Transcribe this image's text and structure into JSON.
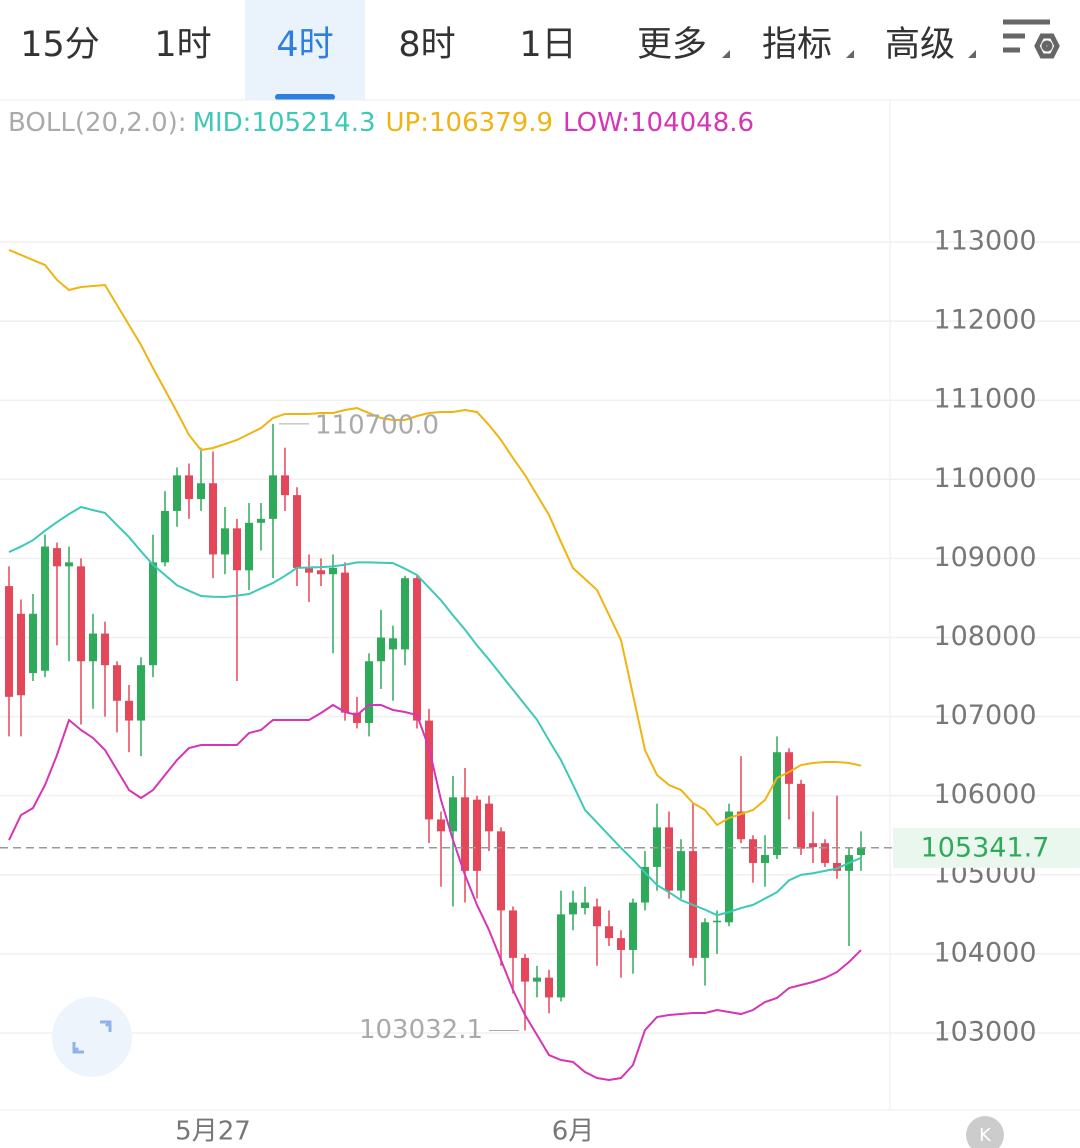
{
  "tabs": [
    "15分",
    "1时",
    "4时",
    "8时",
    "1日",
    "更多",
    "指标",
    "高级"
  ],
  "selected_tab": 2,
  "chart_data": {
    "type": "candlestick",
    "indicator": "BOLL(20,2.0):",
    "categories": [
      null,
      null,
      null,
      null,
      null,
      null,
      null,
      null,
      null,
      null,
      null,
      null,
      null,
      null,
      null,
      null,
      null,
      "5月27",
      null,
      null,
      null,
      null,
      null,
      null,
      null,
      null,
      null,
      null,
      null,
      null,
      null,
      null,
      null,
      null,
      null,
      null,
      null,
      null,
      null,
      null,
      null,
      null,
      null,
      null,
      null,
      null,
      null,
      "6月",
      null,
      null,
      null,
      null,
      null,
      null,
      null,
      null,
      null,
      null,
      null,
      null,
      null,
      null,
      null,
      null,
      null,
      null,
      null,
      null,
      null,
      null,
      null,
      null
    ],
    "open": [
      108650,
      108300,
      107550,
      107580,
      109130,
      108900,
      108900,
      107700,
      108050,
      107650,
      107200,
      106950,
      107650,
      108950,
      109600,
      110050,
      109750,
      109950,
      109050,
      109380,
      108850,
      109450,
      109500,
      110050,
      109800,
      108880,
      108850,
      108800,
      108820,
      107050,
      106920,
      107700,
      107850,
      107850,
      108750,
      106950,
      105700,
      105550,
      105980,
      105950,
      105900,
      105550,
      104550,
      103950,
      103650,
      103700,
      103450,
      104500,
      104580,
      104600,
      104350,
      104200,
      104050,
      104650,
      105100,
      105600,
      104800,
      105300,
      103950,
      104400,
      104400,
      105800,
      105450,
      105150,
      105250,
      106550,
      106150,
      105400,
      105400,
      105150,
      105050,
      105250
    ],
    "high": [
      108900,
      108480,
      108550,
      109300,
      109200,
      109150,
      109000,
      108300,
      108200,
      107700,
      107400,
      107750,
      109300,
      109850,
      110150,
      110200,
      110400,
      110350,
      109650,
      109500,
      109700,
      109700,
      110700,
      110400,
      109900,
      109050,
      109000,
      109050,
      108950,
      107250,
      107800,
      108350,
      108150,
      108780,
      108800,
      107100,
      105800,
      106250,
      106350,
      106000,
      106000,
      105600,
      104600,
      104000,
      103850,
      103800,
      104800,
      104800,
      104850,
      104700,
      104550,
      104300,
      104700,
      105300,
      105900,
      105800,
      105450,
      105900,
      104450,
      104550,
      105900,
      106500,
      105500,
      105500,
      106750,
      106600,
      106200,
      105800,
      105450,
      106000,
      105350,
      105550
    ],
    "low": [
      106750,
      106750,
      107450,
      107500,
      107900,
      107700,
      106900,
      107100,
      107000,
      106800,
      106550,
      106500,
      107500,
      108900,
      109400,
      109500,
      109600,
      108750,
      108800,
      107450,
      108600,
      109100,
      108750,
      109600,
      108650,
      108450,
      108650,
      107800,
      106950,
      106850,
      106750,
      107350,
      107200,
      107650,
      106850,
      105400,
      104850,
      104600,
      104650,
      104700,
      105300,
      103850,
      103500,
      103032.1,
      103450,
      103250,
      103400,
      104300,
      104500,
      103850,
      104100,
      103700,
      103750,
      104550,
      104800,
      104700,
      104700,
      103850,
      103600,
      104000,
      104350,
      105400,
      104900,
      104850,
      105200,
      105700,
      105250,
      105150,
      105100,
      104950,
      104100,
      105050
    ],
    "close": [
      107250,
      107270,
      108300,
      109150,
      108900,
      108950,
      107700,
      108050,
      107650,
      107200,
      106950,
      107650,
      108950,
      109600,
      110050,
      109750,
      109950,
      109050,
      109380,
      108850,
      109450,
      109500,
      110050,
      109800,
      108880,
      108820,
      108800,
      108880,
      107050,
      106920,
      107700,
      108000,
      107990,
      108750,
      106950,
      105700,
      105550,
      105980,
      105050,
      105050,
      105550,
      104550,
      103950,
      103650,
      103700,
      103450,
      104500,
      104650,
      104650,
      104350,
      104200,
      104050,
      104650,
      105100,
      105600,
      104800,
      105300,
      103950,
      104400,
      104420,
      105800,
      105450,
      105150,
      105250,
      106550,
      106150,
      105330,
      105350,
      105150,
      105050,
      105250,
      105341.7
    ],
    "up_color": "#2eaa5a",
    "down_color": "#e5475a",
    "overlays": [
      {
        "name": "MID:105214.3",
        "color": "#3ec9b6",
        "values": [
          109080,
          109150,
          109230,
          109350,
          109460,
          109560,
          109650,
          109610,
          109575,
          109420,
          109270,
          109090,
          108920,
          108790,
          108660,
          108590,
          108525,
          108515,
          108512,
          108530,
          108550,
          108620,
          108690,
          108780,
          108880,
          108885,
          108890,
          108900,
          108920,
          108950,
          108950,
          108945,
          108940,
          108870,
          108790,
          108630,
          108470,
          108280,
          108100,
          107900,
          107720,
          107530,
          107340,
          107150,
          106960,
          106700,
          106450,
          106140,
          105820,
          105660,
          105500,
          105340,
          105190,
          105030,
          104870,
          104780,
          104680,
          104620,
          104560,
          104490,
          104530,
          104580,
          104620,
          104700,
          104780,
          104930,
          105000,
          105020,
          105050,
          105080,
          105150,
          105214.3
        ]
      },
      {
        "name": "UP:106379.9",
        "color": "#f0b412",
        "values": [
          112899,
          112836,
          112772,
          112709,
          112520,
          112393,
          112431,
          112444,
          112456,
          112204,
          111951,
          111698,
          111407,
          111129,
          110851,
          110560,
          110370,
          110396,
          110446,
          110497,
          110573,
          110648,
          110775,
          110826,
          110826,
          110826,
          110838,
          110838,
          110876,
          110901,
          110838,
          110775,
          110750,
          110750,
          110800,
          110838,
          110851,
          110851,
          110876,
          110851,
          110686,
          110497,
          110269,
          110054,
          109801,
          109549,
          109207,
          108879,
          108740,
          108601,
          108285,
          107968,
          107273,
          106578,
          106262,
          106135,
          106072,
          105908,
          105820,
          105630,
          105718,
          105769,
          105820,
          105946,
          106224,
          106300,
          106388,
          106414,
          106426,
          106426,
          106414,
          106379.9
        ]
      },
      {
        "name": "LOW:104048.6",
        "color": "#d635b6",
        "values": [
          105440,
          105756,
          105845,
          106136,
          106515,
          106957,
          106831,
          106730,
          106578,
          106325,
          106072,
          105971,
          106072,
          106262,
          106451,
          106603,
          106641,
          106641,
          106641,
          106641,
          106793,
          106831,
          106957,
          106957,
          106957,
          106957,
          107046,
          107147,
          107058,
          107020,
          107147,
          107147,
          107084,
          107058,
          107020,
          106603,
          105946,
          105440,
          104998,
          104619,
          104302,
          103923,
          103544,
          103228,
          102975,
          102722,
          102659,
          102634,
          102507,
          102431,
          102406,
          102431,
          102596,
          103038,
          103202,
          103228,
          103240,
          103253,
          103253,
          103291,
          103266,
          103240,
          103291,
          103392,
          103443,
          103569,
          103607,
          103645,
          103696,
          103772,
          103898,
          104048.6
        ]
      }
    ],
    "ylim": [
      102027,
      114795
    ],
    "yticks": [
      103000,
      104000,
      105000,
      106000,
      107000,
      108000,
      109000,
      110000,
      111000,
      112000,
      113000
    ],
    "grid": true,
    "last_price": 105341.7,
    "high_label": {
      "value": 110700,
      "label": "110700.0"
    },
    "low_label": 103032.1
  }
}
